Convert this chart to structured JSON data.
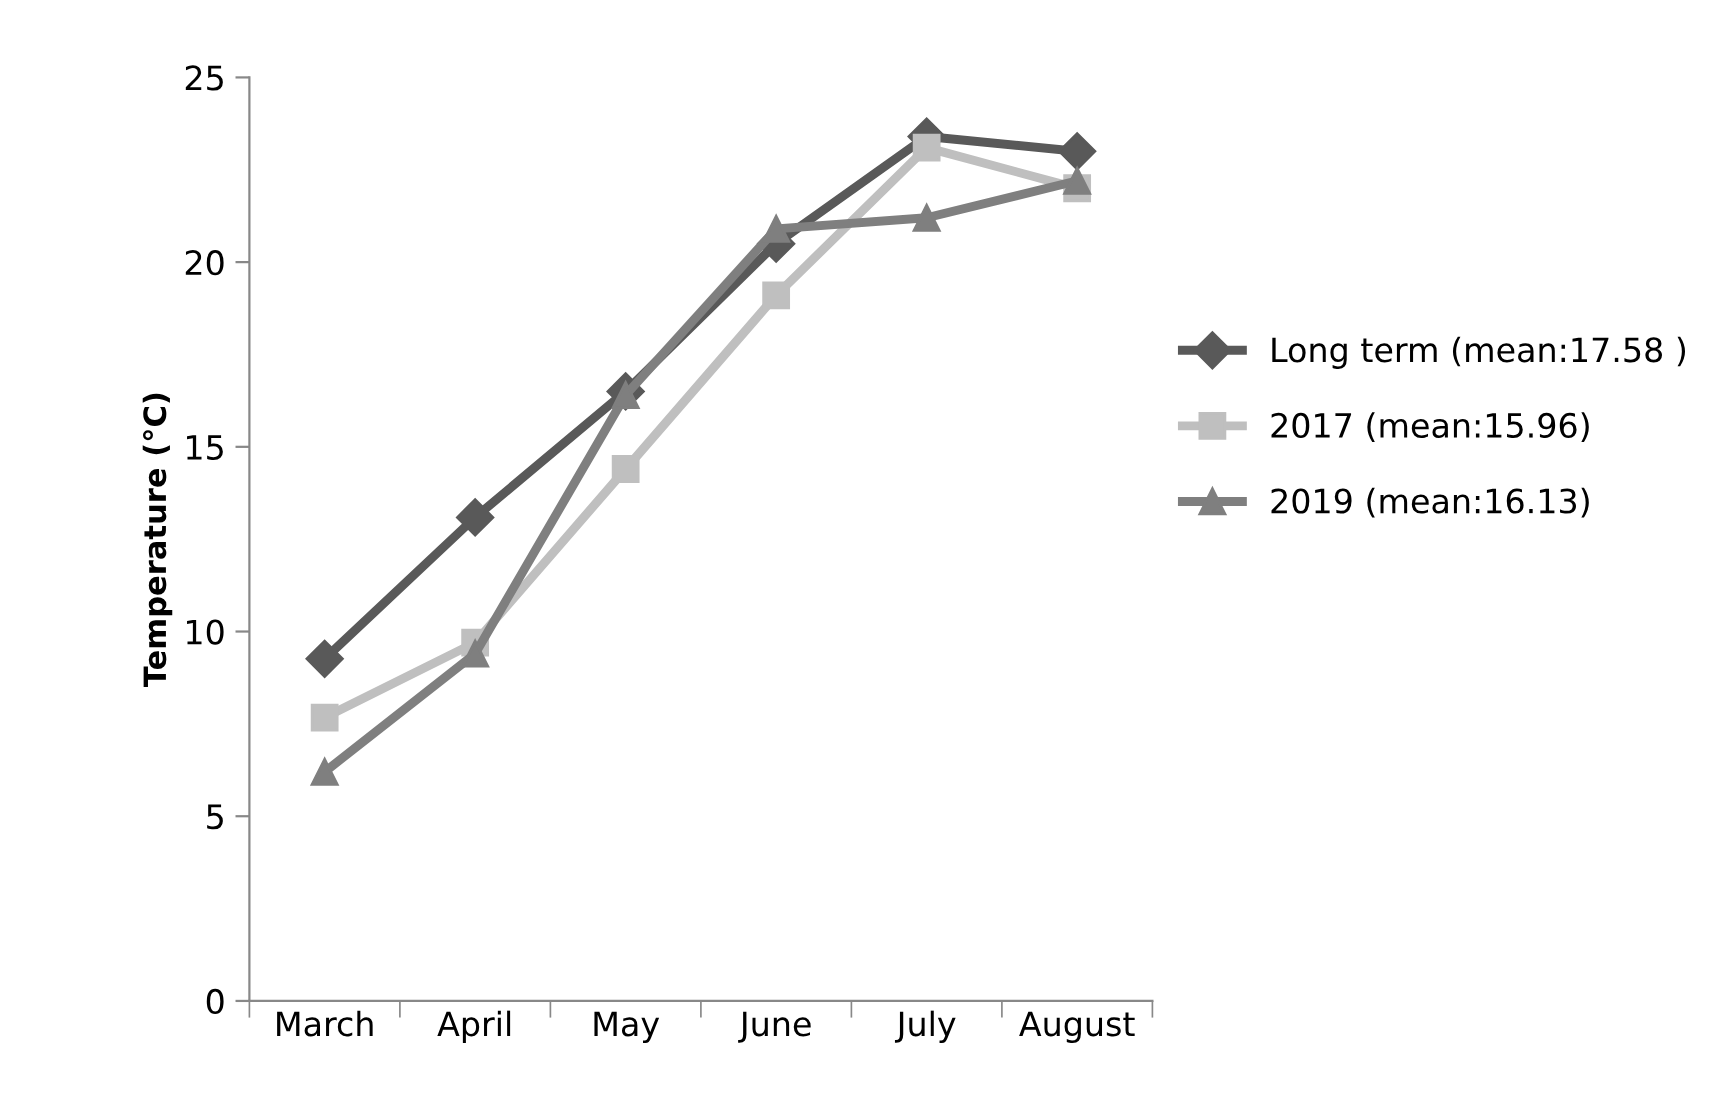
{
  "chart_data": {
    "type": "line",
    "ylabel": "Temperature (°C)",
    "categories": [
      "March",
      "April",
      "May",
      "June",
      "July",
      "August"
    ],
    "series": [
      {
        "name": "Long term (mean:17.58 )",
        "color": "#595959",
        "marker": "diamond",
        "values": [
          9.26,
          13.09,
          16.5,
          20.5,
          23.4,
          23.0
        ]
      },
      {
        "name": "2017 (mean:15.96)",
        "color": "#bfbfbf",
        "marker": "square",
        "values": [
          7.67,
          9.7,
          14.4,
          19.1,
          23.1,
          22.0
        ]
      },
      {
        "name": "2019 (mean:16.13)",
        "color": "#7f7f7f",
        "marker": "triangle",
        "values": [
          6.2,
          9.4,
          16.4,
          20.9,
          21.2,
          22.2
        ]
      }
    ],
    "ylim": [
      0,
      25
    ],
    "yticks": [
      0,
      5,
      10,
      15,
      20,
      25
    ],
    "grid": false,
    "legend": "right",
    "line_style": "solid"
  }
}
